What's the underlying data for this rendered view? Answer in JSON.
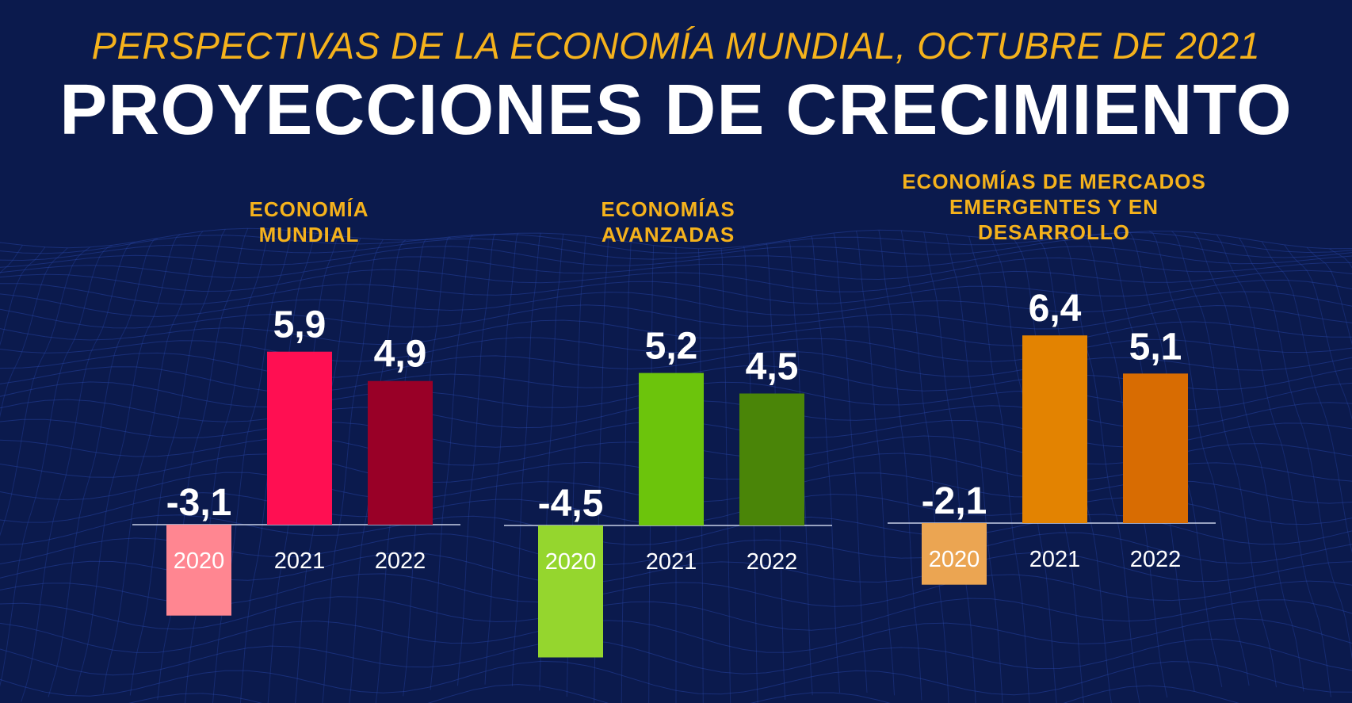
{
  "header": {
    "subtitle": "PERSPECTIVAS DE LA ECONOMÍA MUNDIAL, OCTUBRE DE 2021",
    "title": "PROYECCIONES DE CRECIMIENTO"
  },
  "colors": {
    "background": "#0b1a4d",
    "grid": "#2a4ab0",
    "heading": "#f5b21c"
  },
  "chart_data": [
    {
      "type": "bar",
      "title_lines": [
        "ECONOMÍA",
        "MUNDIAL"
      ],
      "categories": [
        "2020",
        "2021",
        "2022"
      ],
      "values": [
        -3.1,
        5.9,
        4.9
      ],
      "value_labels": [
        "-3,1",
        "5,9",
        "4,9"
      ],
      "colors": [
        "#ff8691",
        "#ff0f52",
        "#990027"
      ]
    },
    {
      "type": "bar",
      "title_lines": [
        "ECONOMÍAS",
        "AVANZADAS"
      ],
      "categories": [
        "2020",
        "2021",
        "2022"
      ],
      "values": [
        -4.5,
        5.2,
        4.5
      ],
      "value_labels": [
        "-4,5",
        "5,2",
        "4,5"
      ],
      "colors": [
        "#95d62e",
        "#6cc40c",
        "#4a8508"
      ]
    },
    {
      "type": "bar",
      "title_lines": [
        "ECONOMÍAS DE MERCADOS",
        "EMERGENTES Y EN",
        "DESARROLLO"
      ],
      "categories": [
        "2020",
        "2021",
        "2022"
      ],
      "values": [
        -2.1,
        6.4,
        5.1
      ],
      "value_labels": [
        "-2,1",
        "6,4",
        "5,1"
      ],
      "colors": [
        "#eba552",
        "#e38301",
        "#d86c02"
      ]
    }
  ]
}
